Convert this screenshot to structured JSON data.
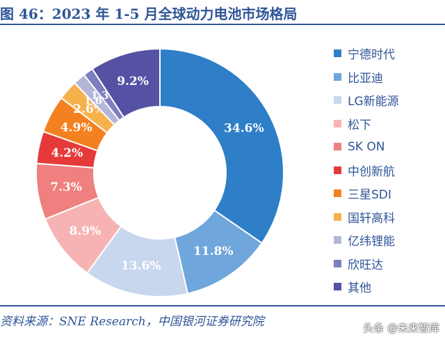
{
  "header": {
    "title": "图 46：2023 年 1-5 月全球动力电池市场格局"
  },
  "chart_data": {
    "type": "pie",
    "title": "图 46：2023 年 1-5 月全球动力电池市场格局",
    "donut": true,
    "legend_position": "right",
    "labels": [
      "宁德时代",
      "比亚迪",
      "LG新能源",
      "松下",
      "SK ON",
      "中创新航",
      "三星SDI",
      "国轩高科",
      "亿纬锂能",
      "欣旺达",
      "其他"
    ],
    "values": [
      34.6,
      11.8,
      13.6,
      8.9,
      7.3,
      4.2,
      4.9,
      2.6,
      1.6,
      1.3,
      9.2
    ],
    "value_labels": [
      "34.6%",
      "11.8%",
      "13.6%",
      "8.9%",
      "7.3%",
      "4.2%",
      "4.9%",
      "2.6%",
      "1.6%",
      "1.3%",
      "9.2%"
    ],
    "colors": [
      "#2e7ec8",
      "#6fa6dc",
      "#c8d6ee",
      "#f7b3b3",
      "#f07f7f",
      "#e63a3a",
      "#f4811f",
      "#f7b14c",
      "#b4b6d8",
      "#7e7fbf",
      "#5551a3"
    ],
    "value_label_colors": [
      "#ffffff",
      "#ffffff",
      "#ffffff",
      "#ffffff",
      "#ffffff",
      "#ffffff",
      "#ffffff",
      "#ffffff",
      "#ffffff",
      "#ffffff",
      "#ffffff"
    ]
  },
  "footer": {
    "source": "资料来源：SNE Research，中国银河证券研究院",
    "watermark": "头条 @未来智库"
  }
}
